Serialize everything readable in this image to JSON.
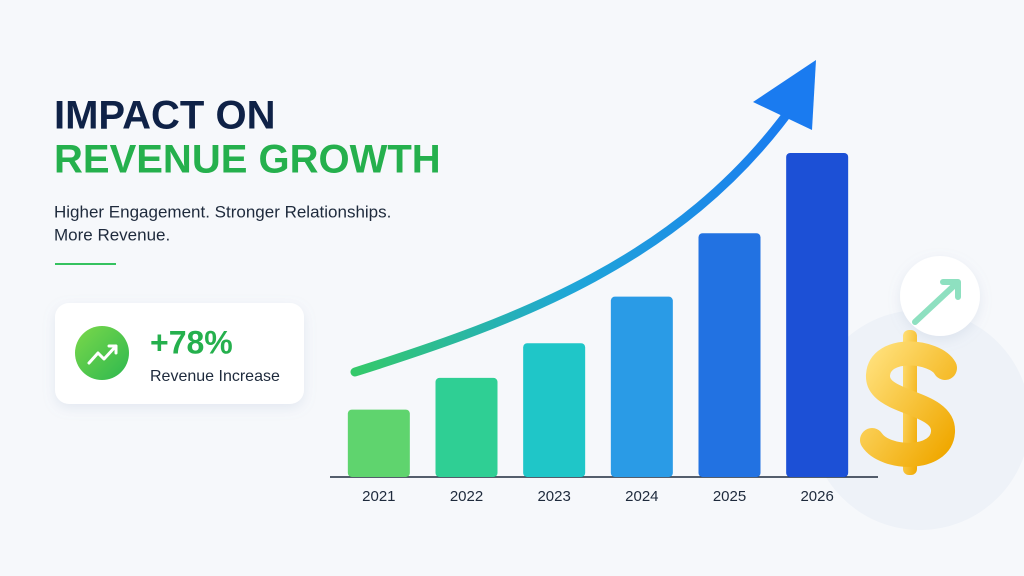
{
  "chart_data": {
    "type": "bar",
    "title_lines": [
      "IMPACT ON",
      "REVENUE GROWTH"
    ],
    "subtitle_lines": [
      "Higher Engagement. Stronger Relationships.",
      "More Revenue."
    ],
    "callout": {
      "value": "+78%",
      "label": "Revenue Increase"
    },
    "categories": [
      "2021",
      "2022",
      "2023",
      "2024",
      "2025",
      "2026"
    ],
    "values": [
      68,
      100,
      135,
      182,
      246,
      327
    ],
    "colors": [
      "#5fd46e",
      "#2fcf94",
      "#1fc6c8",
      "#2a9be6",
      "#2272e2",
      "#1c50d6"
    ],
    "ylim": [
      0,
      330
    ]
  }
}
